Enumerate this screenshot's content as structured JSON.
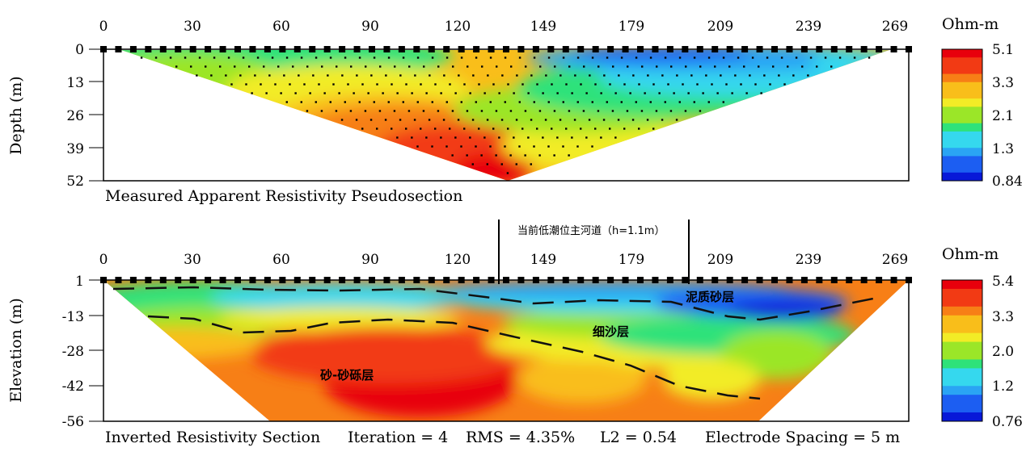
{
  "colors": {
    "scale": [
      "#0818d8",
      "#1c5ef2",
      "#2aa4f4",
      "#35d8ee",
      "#2ee27a",
      "#9be628",
      "#f2ec26",
      "#f9be1a",
      "#f77f16",
      "#f23a14",
      "#e8000c"
    ],
    "frame": "#000000",
    "dots": "#000000"
  },
  "chart_data": [
    {
      "type": "heatmap",
      "title": "Measured Apparent Resistivity Pseudosection",
      "xlabel": "",
      "ylabel": "Depth (m)",
      "x_ticks": [
        "0",
        "30",
        "60",
        "90",
        "120",
        "149",
        "179",
        "209",
        "239",
        "269"
      ],
      "y_ticks": [
        "0",
        "13",
        "26",
        "39",
        "52"
      ],
      "xlim": [
        0,
        269
      ],
      "ylim": [
        0,
        52
      ],
      "unit": "Ohm-m",
      "colorbar_ticks": [
        "5.1",
        "3.3",
        "2.1",
        "1.3",
        "0.84"
      ],
      "colorbar_range": [
        0.84,
        5.1
      ],
      "description_zones": [
        {
          "x_range": [
            0,
            60
          ],
          "depth_range": [
            0,
            10
          ],
          "value": 2.0
        },
        {
          "x_range": [
            150,
            269
          ],
          "depth_range": [
            0,
            8
          ],
          "value": 1.1
        },
        {
          "x_range": [
            100,
            140
          ],
          "depth_range": [
            35,
            52
          ],
          "value": 5.0
        }
      ]
    },
    {
      "type": "heatmap",
      "title": "Inverted Resistivity Section",
      "xlabel": "",
      "ylabel": "Elevation (m)",
      "x_ticks": [
        "0",
        "30",
        "60",
        "90",
        "120",
        "149",
        "179",
        "209",
        "239",
        "269"
      ],
      "y_ticks": [
        "1",
        "-13",
        "-28",
        "-42",
        "-56"
      ],
      "xlim": [
        0,
        269
      ],
      "ylim": [
        -56,
        1
      ],
      "unit": "Ohm-m",
      "colorbar_ticks": [
        "5.4",
        "3.3",
        "2.0",
        "1.2",
        "0.76"
      ],
      "colorbar_range": [
        0.76,
        5.4
      ],
      "annotations": {
        "channel": "当前低潮位主河道（h=1.1m）",
        "layer_mud_sand": "泥质砂层",
        "layer_fine_sand": "细沙层",
        "layer_gravel": "砂-砂砾层"
      },
      "stats": {
        "iteration": "Iteration = 4",
        "rms": "RMS = 4.35%",
        "l2": "L2 = 0.54",
        "spacing": "Electrode Spacing = 5 m"
      }
    }
  ]
}
